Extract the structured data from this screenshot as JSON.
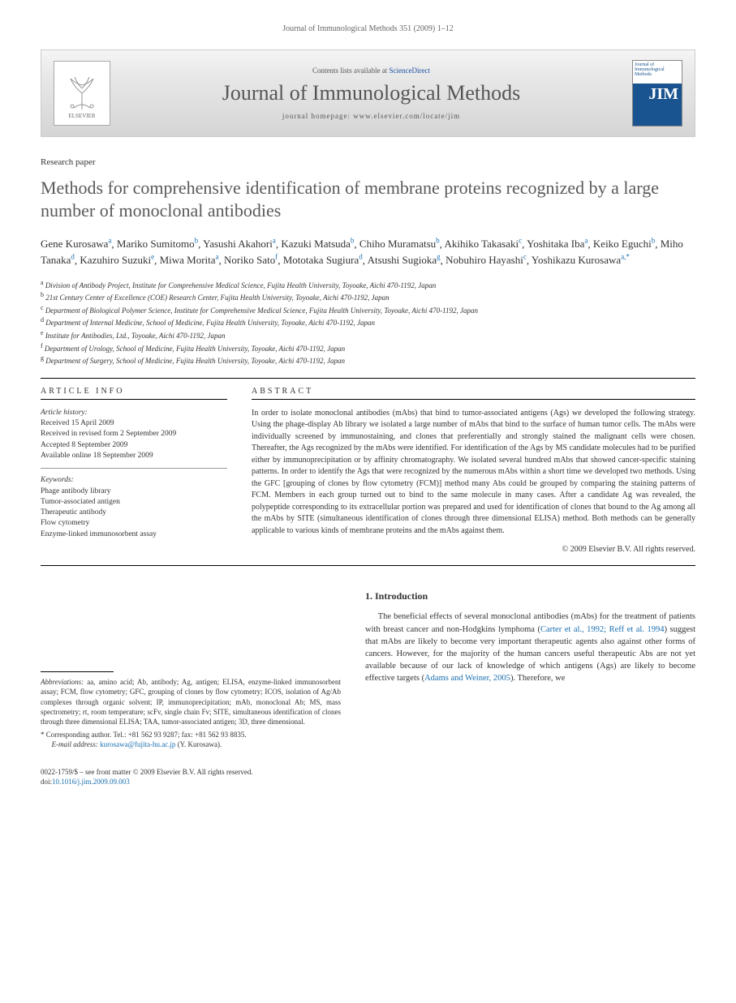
{
  "header": {
    "citation": "Journal of Immunological Methods 351 (2009) 1–12"
  },
  "masthead": {
    "publisher": "ELSEVIER",
    "contents_prefix": "Contents lists available at ",
    "contents_link": "ScienceDirect",
    "journal_name": "Journal of Immunological Methods",
    "homepage_prefix": "journal homepage: ",
    "homepage_url": "www.elsevier.com/locate/jim",
    "cover_abbrev": "JIM",
    "cover_text": "Journal of Immunological Methods"
  },
  "article": {
    "type": "Research paper",
    "title": "Methods for comprehensive identification of membrane proteins recognized by a large number of monoclonal antibodies"
  },
  "authors": [
    {
      "name": "Gene Kurosawa",
      "aff": "a"
    },
    {
      "name": "Mariko Sumitomo",
      "aff": "b"
    },
    {
      "name": "Yasushi Akahori",
      "aff": "a"
    },
    {
      "name": "Kazuki Matsuda",
      "aff": "b"
    },
    {
      "name": "Chiho Muramatsu",
      "aff": "b"
    },
    {
      "name": "Akihiko Takasaki",
      "aff": "c"
    },
    {
      "name": "Yoshitaka Iba",
      "aff": "a"
    },
    {
      "name": "Keiko Eguchi",
      "aff": "b"
    },
    {
      "name": "Miho Tanaka",
      "aff": "d"
    },
    {
      "name": "Kazuhiro Suzuki",
      "aff": "e"
    },
    {
      "name": "Miwa Morita",
      "aff": "a"
    },
    {
      "name": "Noriko Sato",
      "aff": "f"
    },
    {
      "name": "Mototaka Sugiura",
      "aff": "d"
    },
    {
      "name": "Atsushi Sugioka",
      "aff": "g"
    },
    {
      "name": "Nobuhiro Hayashi",
      "aff": "c"
    },
    {
      "name": "Yoshikazu Kurosawa",
      "aff": "a,*"
    }
  ],
  "affiliations": [
    {
      "sup": "a",
      "text": "Division of Antibody Project, Institute for Comprehensive Medical Science, Fujita Health University, Toyoake, Aichi 470-1192, Japan"
    },
    {
      "sup": "b",
      "text": "21st Century Center of Excellence (COE) Research Center, Fujita Health University, Toyoake, Aichi 470-1192, Japan"
    },
    {
      "sup": "c",
      "text": "Department of Biological Polymer Science, Institute for Comprehensive Medical Science, Fujita Health University, Toyoake, Aichi 470-1192, Japan"
    },
    {
      "sup": "d",
      "text": "Department of Internal Medicine, School of Medicine, Fujita Health University, Toyoake, Aichi 470-1192, Japan"
    },
    {
      "sup": "e",
      "text": "Institute for Antibodies, Ltd., Toyoake, Aichi 470-1192, Japan"
    },
    {
      "sup": "f",
      "text": "Department of Urology, School of Medicine, Fujita Health University, Toyoake, Aichi 470-1192, Japan"
    },
    {
      "sup": "g",
      "text": "Department of Surgery, School of Medicine, Fujita Health University, Toyoake, Aichi 470-1192, Japan"
    }
  ],
  "article_info": {
    "heading": "ARTICLE INFO",
    "history_label": "Article history:",
    "history": [
      "Received 15 April 2009",
      "Received in revised form 2 September 2009",
      "Accepted 8 September 2009",
      "Available online 18 September 2009"
    ],
    "keywords_label": "Keywords:",
    "keywords": [
      "Phage antibody library",
      "Tumor-associated antigen",
      "Therapeutic antibody",
      "Flow cytometry",
      "Enzyme-linked immunosorbent assay"
    ]
  },
  "abstract": {
    "heading": "ABSTRACT",
    "text": "In order to isolate monoclonal antibodies (mAbs) that bind to tumor-associated antigens (Ags) we developed the following strategy. Using the phage-display Ab library we isolated a large number of mAbs that bind to the surface of human tumor cells. The mAbs were individually screened by immunostaining, and clones that preferentially and strongly stained the malignant cells were chosen. Thereafter, the Ags recognized by the mAbs were identified. For identification of the Ags by MS candidate molecules had to be purified either by immunoprecipitation or by affinity chromatography. We isolated several hundred mAbs that showed cancer-specific staining patterns. In order to identify the Ags that were recognized by the numerous mAbs within a short time we developed two methods. Using the GFC [grouping of clones by flow cytometry (FCM)] method many Abs could be grouped by comparing the staining patterns of FCM. Members in each group turned out to bind to the same molecule in many cases. After a candidate Ag was revealed, the polypeptide corresponding to its extracellular portion was prepared and used for identification of clones that bound to the Ag among all the mAbs by SITE (simultaneous identification of clones through three dimensional ELISA) method. Both methods can be generally applicable to various kinds of membrane proteins and the mAbs against them.",
    "copyright": "© 2009 Elsevier B.V. All rights reserved."
  },
  "footnotes": {
    "abbrev_label": "Abbreviations:",
    "abbrev_text": " aa, amino acid; Ab, antibody; Ag, antigen; ELISA, enzyme-linked immunosorbent assay; FCM, flow cytometry; GFC, grouping of clones by flow cytometry; ICOS, isolation of Ag/Ab complexes through organic solvent; IP, immunoprecipitation; mAb, monoclonal Ab; MS, mass spectrometry; rt, room temperature; scFv, single chain Fv; SITE, simultaneous identification of clones through three dimensional ELISA; TAA, tumor-associated antigen; 3D, three dimensional.",
    "corr_label": "* Corresponding author.",
    "corr_text": " Tel.: +81 562 93 9287; fax: +81 562 93 8835.",
    "email_label": "E-mail address: ",
    "email": "kurosawa@fujita-hu.ac.jp",
    "email_suffix": " (Y. Kurosawa)."
  },
  "introduction": {
    "heading": "1. Introduction",
    "text_before_cite1": "The beneficial effects of several monoclonal antibodies (mAbs) for the treatment of patients with breast cancer and non-Hodgkins lymphoma (",
    "cite1": "Carter et al., 1992; Reff et al. 1994",
    "text_mid": ") suggest that mAbs are likely to become very important therapeutic agents also against other forms of cancers. However, for the majority of the human cancers useful therapeutic Abs are not yet available because of our lack of knowledge of which antigens (Ags) are likely to become effective targets (",
    "cite2": "Adams and Weiner, 2005",
    "text_after": "). Therefore, we"
  },
  "footer": {
    "line1": "0022-1759/$ – see front matter © 2009 Elsevier B.V. All rights reserved.",
    "doi_prefix": "doi:",
    "doi": "10.1016/j.jim.2009.09.003"
  },
  "colors": {
    "link": "#1a6fb0",
    "title_gray": "#5a5a5a",
    "cover_blue": "#1a5490"
  }
}
